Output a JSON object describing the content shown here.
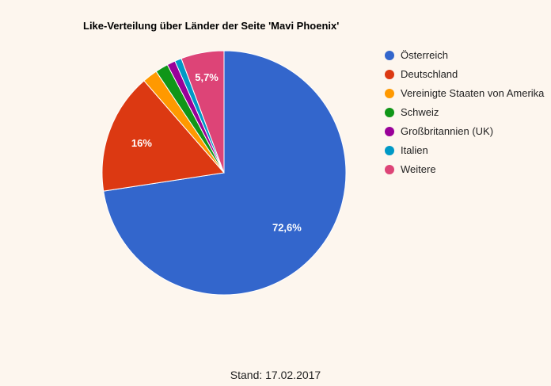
{
  "chart_data": {
    "type": "pie",
    "title": "Like-Verteilung über Länder der Seite 'Mavi Phoenix'",
    "slices": [
      {
        "label": "Österreich",
        "value": 72.6,
        "value_label": "72,6%",
        "color": "#3366cc"
      },
      {
        "label": "Deutschland",
        "value": 16.0,
        "value_label": "16%",
        "color": "#dc3912"
      },
      {
        "label": "Vereinigte Staaten von Amerika",
        "value": 2.0,
        "value_label": "",
        "color": "#ff9900"
      },
      {
        "label": "Schweiz",
        "value": 1.7,
        "value_label": "",
        "color": "#109618"
      },
      {
        "label": "Großbritannien (UK)",
        "value": 1.1,
        "value_label": "",
        "color": "#990099"
      },
      {
        "label": "Italien",
        "value": 0.9,
        "value_label": "",
        "color": "#0099c6"
      },
      {
        "label": "Weitere",
        "value": 5.7,
        "value_label": "5,7%",
        "color": "#dd4477"
      }
    ],
    "legend_position": "right"
  },
  "footer": "Stand: 17.02.2017"
}
